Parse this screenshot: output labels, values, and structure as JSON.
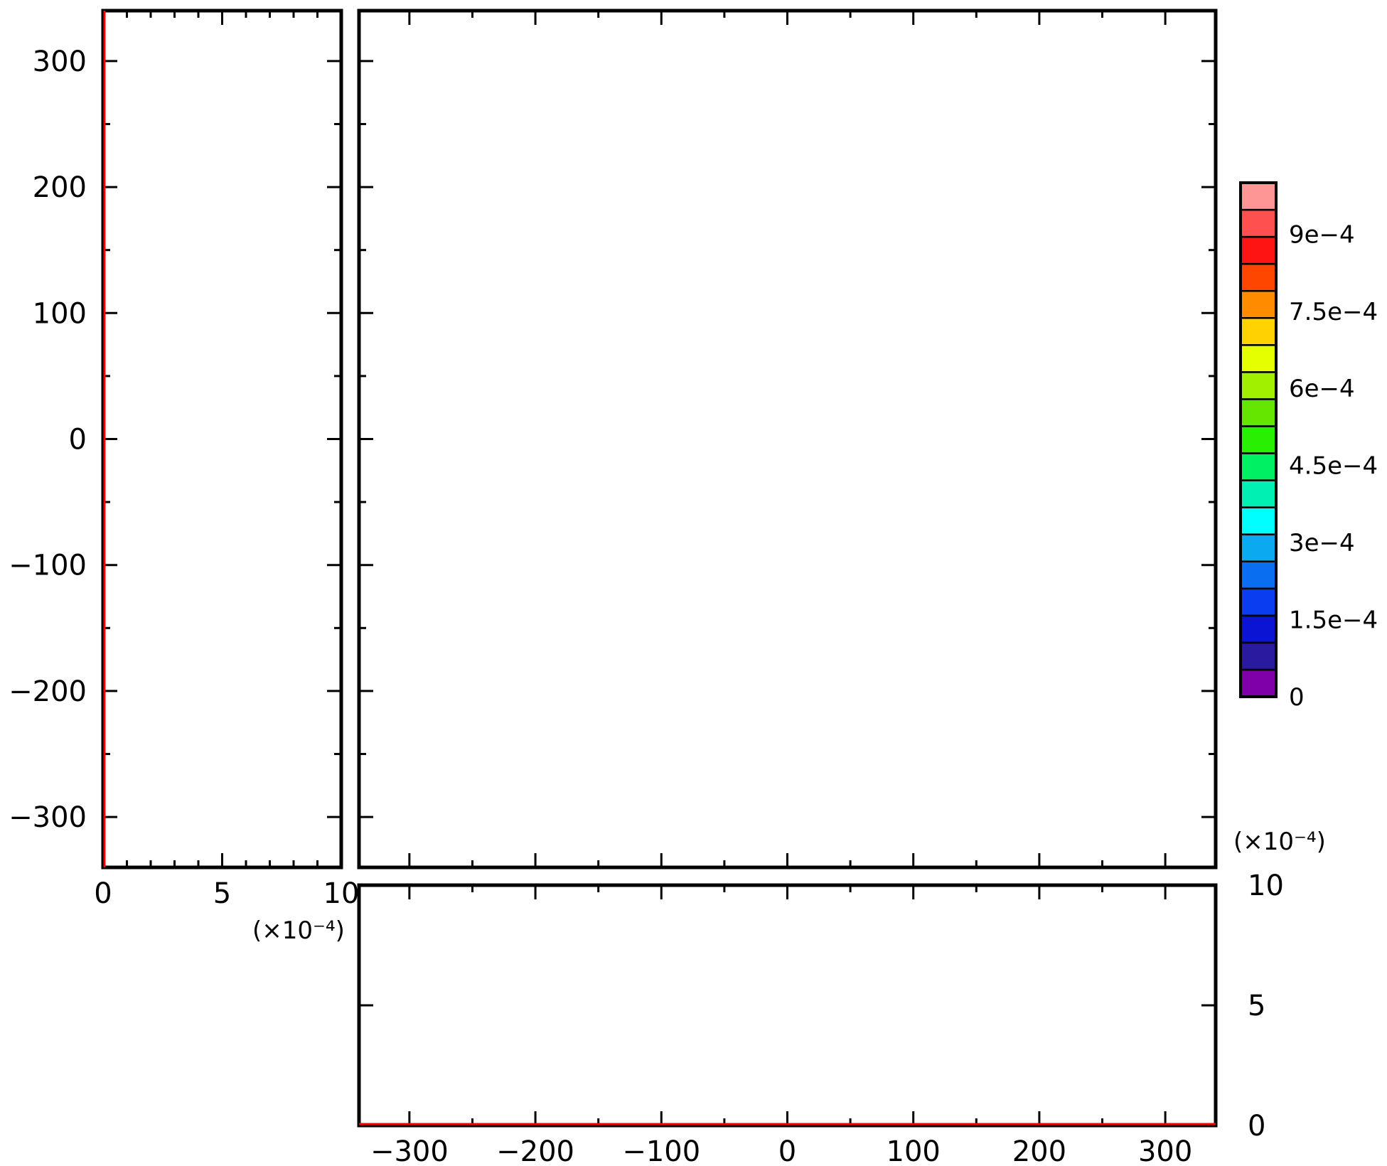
{
  "chart_data": [
    {
      "panel": "left-profile",
      "type": "line",
      "x_range": [
        0,
        10
      ],
      "y_range": [
        -340,
        340
      ],
      "x_ticks": [
        "0",
        "5",
        "10"
      ],
      "y_ticks": [
        "300",
        "200",
        "100",
        "0",
        "−100",
        "−200",
        "−300"
      ],
      "x_multiplier": "(×10⁻⁴)",
      "series": [
        {
          "color": "#ff0000",
          "x": [
            0,
            0
          ],
          "y": [
            -340,
            340
          ]
        }
      ]
    },
    {
      "panel": "main-map",
      "type": "heatmap",
      "x_range": [
        -340,
        340
      ],
      "y_range": [
        -340,
        340
      ],
      "values": "all zero (blank)"
    },
    {
      "panel": "bottom-profile",
      "type": "line",
      "x_range": [
        -340,
        340
      ],
      "y_range": [
        0,
        10
      ],
      "x_ticks": [
        "−300",
        "−200",
        "−100",
        "0",
        "100",
        "200",
        "300"
      ],
      "y_ticks": [
        "10",
        "5",
        "0"
      ],
      "y_multiplier": "(×10⁻⁴)",
      "series": [
        {
          "color": "#ff0000",
          "x": [
            -340,
            340
          ],
          "y": [
            0,
            0
          ]
        }
      ]
    },
    {
      "panel": "colorbar",
      "type": "colorbar",
      "range": [
        0,
        0.001
      ],
      "colors": [
        "#7f00a8",
        "#2a1aa0",
        "#0a14d2",
        "#0a3cf0",
        "#0a6ef0",
        "#0aaaf0",
        "#00ffff",
        "#00f0b4",
        "#00f064",
        "#28f000",
        "#64e600",
        "#a0f000",
        "#e6ff00",
        "#ffd200",
        "#ff8c00",
        "#ff4600",
        "#ff1414",
        "#ff5050",
        "#ff9696"
      ],
      "labels": [
        "9e−4",
        "7.5e−4",
        "6e−4",
        "4.5e−4",
        "3e−4",
        "1.5e−4",
        "0"
      ],
      "label_values": [
        0.0009,
        0.00075,
        0.0006,
        0.00045,
        0.0003,
        0.00015,
        0
      ]
    }
  ]
}
